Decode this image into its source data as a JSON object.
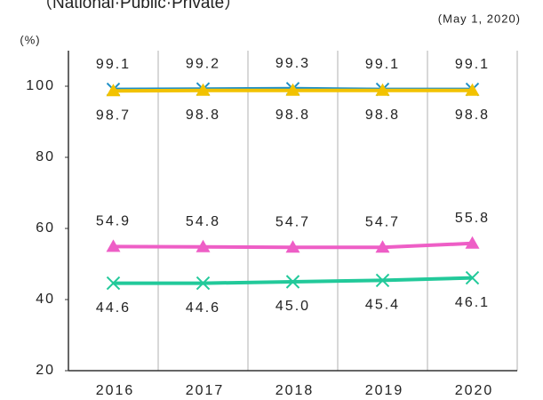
{
  "chart_data": {
    "type": "line",
    "title": "（National·Public·Private）",
    "subtitle": "(May 1, 2020)",
    "y_label": "(%)",
    "categories": [
      "2016",
      "2017",
      "2018",
      "2019",
      "2020"
    ],
    "ylim": [
      20,
      110
    ],
    "yticks": [
      20,
      40,
      60,
      80,
      100
    ],
    "series": [
      {
        "color": "#1e8fc6",
        "marker": "x",
        "label_position": "above",
        "values": [
          99.1,
          99.2,
          99.3,
          99.1,
          99.1
        ]
      },
      {
        "color": "#f2c200",
        "marker": "triangle",
        "label_position": "below",
        "values": [
          98.7,
          98.8,
          98.8,
          98.8,
          98.8
        ]
      },
      {
        "color": "#ee5ec6",
        "marker": "triangle",
        "label_position": "above",
        "values": [
          54.9,
          54.8,
          54.7,
          54.7,
          55.8
        ]
      },
      {
        "color": "#22c99a",
        "marker": "x",
        "label_position": "below",
        "values": [
          44.6,
          44.6,
          45.0,
          45.4,
          46.1
        ],
        "value_labels": [
          "44.6",
          "44.6",
          "45.0",
          "45.4",
          "46.1"
        ]
      }
    ]
  }
}
